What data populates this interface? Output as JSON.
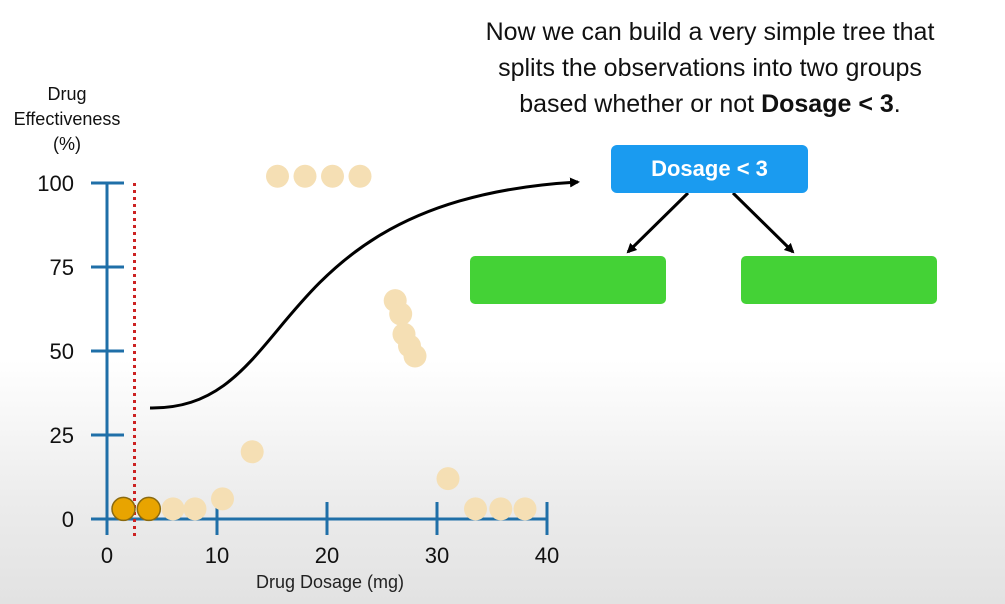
{
  "caption": {
    "line1": "Now we can build a very simple tree that",
    "line2": "splits the observations into two groups",
    "line3_prefix": "based whether or not ",
    "line3_bold": "Dosage <  3",
    "line3_suffix": "."
  },
  "tree": {
    "root_label": "Dosage < 3",
    "root_color": "#1a9bf0",
    "leaf_color": "#44d236"
  },
  "chart_data": {
    "type": "scatter",
    "ylabel_lines": [
      "Drug",
      "Effectiveness",
      "(%)"
    ],
    "xlabel": "Drug Dosage (mg)",
    "xlim": [
      0,
      40
    ],
    "ylim": [
      0,
      100
    ],
    "xticks": [
      0,
      10,
      20,
      30,
      40
    ],
    "yticks": [
      0,
      25,
      50,
      75,
      100
    ],
    "grid": false,
    "axis_color": "#1f6fa8",
    "threshold": {
      "x": 2.5,
      "style": "dotted",
      "color": "#cc2222"
    },
    "series": [
      {
        "color": "#e8a400",
        "points": [
          [
            1.5,
            3
          ],
          [
            3.8,
            3
          ]
        ]
      },
      {
        "color": "#f5dfb4",
        "points": [
          [
            6,
            3
          ],
          [
            8,
            3
          ],
          [
            10.5,
            6
          ],
          [
            13.2,
            20
          ],
          [
            15.5,
            102
          ],
          [
            18,
            102
          ],
          [
            20.5,
            102
          ],
          [
            23,
            102
          ],
          [
            26.2,
            65
          ],
          [
            26.7,
            61
          ],
          [
            27,
            55
          ],
          [
            27.5,
            51.5
          ],
          [
            28,
            48.5
          ],
          [
            31,
            12
          ],
          [
            33.5,
            3
          ],
          [
            35.8,
            3
          ],
          [
            38,
            3
          ]
        ]
      }
    ]
  }
}
